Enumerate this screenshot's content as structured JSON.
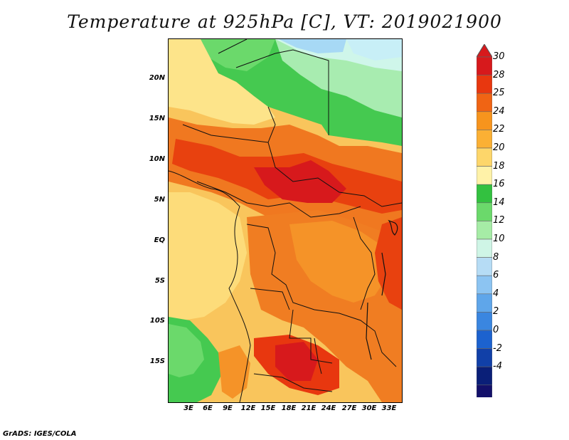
{
  "title": "Temperature at 925hPa [C], VT: 2019021900",
  "credit": "GrADS: IGES/COLA",
  "map": {
    "lat_labels": [
      "20N",
      "15N",
      "10N",
      "5N",
      "EQ",
      "5S",
      "10S",
      "15S"
    ],
    "lon_labels": [
      "3E",
      "6E",
      "9E",
      "12E",
      "15E",
      "18E",
      "21E",
      "24E",
      "27E",
      "30E",
      "33E"
    ]
  },
  "colorbar": {
    "labels": [
      "30",
      "28",
      "25",
      "24",
      "22",
      "20",
      "18",
      "16",
      "14",
      "12",
      "10",
      "8",
      "6",
      "4",
      "2",
      "0",
      "-2",
      "-4"
    ],
    "colors": [
      "#d7191c",
      "#e8370f",
      "#f06414",
      "#f7941d",
      "#fbb034",
      "#fdd66a",
      "#fff2a8",
      "#33c140",
      "#6bd96b",
      "#a6eca6",
      "#cff5e6",
      "#b6dcf5",
      "#8cc4f2",
      "#5fa6ea",
      "#3a86e0",
      "#1c62cf",
      "#1140a8",
      "#0a1f78",
      "#13106a"
    ],
    "max_arrow_color": "#d7191c",
    "min_arrow_color": "#cccaf0"
  }
}
